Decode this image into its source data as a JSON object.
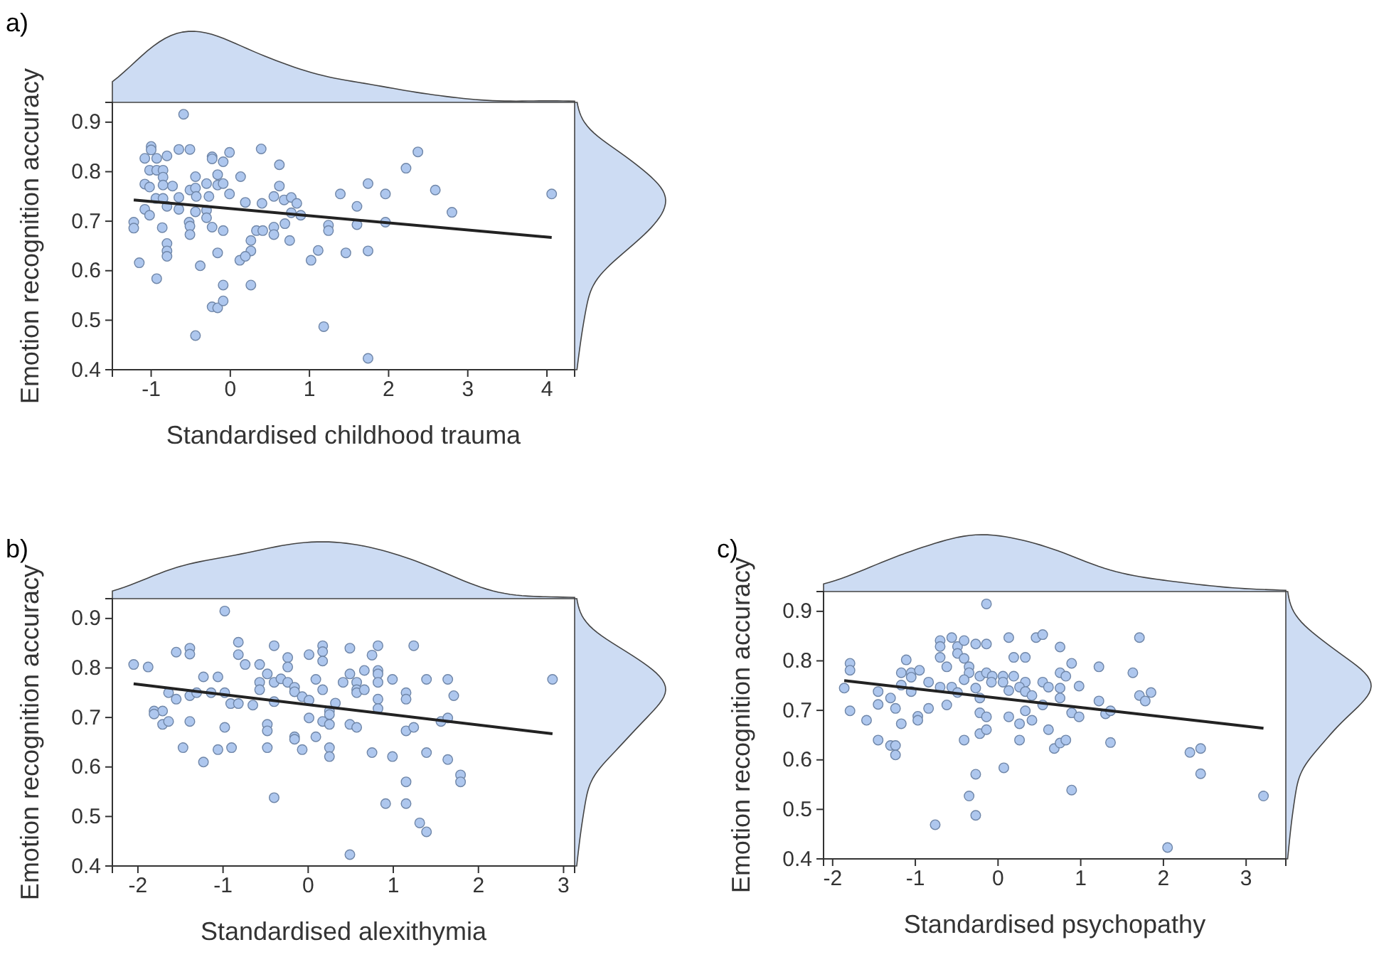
{
  "chart_data": [
    {
      "type": "scatter",
      "title": "a)",
      "xlabel": "Standardised childhood trauma",
      "ylabel": "Emotion recognition accuracy",
      "xlim": [
        -1.49,
        4.35
      ],
      "ylim": [
        0.4,
        0.94
      ],
      "xticks": [
        -1,
        0,
        1,
        2,
        3,
        4
      ],
      "yticks": [
        0.4,
        0.5,
        0.6,
        0.7,
        0.8,
        0.9
      ],
      "grid": false,
      "series": [
        {
          "type": "scatter",
          "marker": "circle",
          "color": "#aec7ee",
          "x": [
            -0.59,
            -1.0,
            -1.0,
            -1.08,
            -0.93,
            -0.65,
            -0.51,
            -0.8,
            -0.23,
            -0.23,
            -0.01,
            -0.09,
            0.39,
            0.62,
            2.37,
            2.22,
            -1.02,
            -0.93,
            -0.85,
            -0.85,
            -0.44,
            -0.16,
            0.13,
            -1.08,
            -1.02,
            -0.85,
            -0.73,
            -0.51,
            -0.44,
            -0.3,
            -0.16,
            -0.09,
            0.62,
            1.74,
            2.59,
            4.06,
            -0.94,
            -0.85,
            -0.65,
            -0.43,
            -0.27,
            -0.01,
            0.4,
            0.55,
            0.68,
            0.77,
            0.84,
            1.39,
            1.6,
            1.96,
            -0.8,
            -0.65,
            -1.08,
            -1.02,
            -0.44,
            -0.3,
            0.19,
            0.77,
            0.89,
            2.8,
            -1.22,
            -1.22,
            -0.52,
            -0.51,
            -0.3,
            -0.23,
            -0.09,
            -0.86,
            -0.51,
            0.33,
            0.41,
            0.55,
            0.55,
            0.69,
            1.24,
            1.24,
            1.6,
            1.96,
            -0.8,
            -0.8,
            -0.8,
            0.75,
            0.26,
            -0.16,
            0.26,
            0.12,
            0.19,
            1.11,
            1.02,
            1.46,
            1.74,
            -1.15,
            -0.38,
            -0.93,
            -0.09,
            0.26,
            -0.23,
            -0.16,
            -0.09,
            1.18,
            -0.44,
            1.74
          ],
          "values": [
            0.916,
            0.851,
            0.844,
            0.827,
            0.827,
            0.845,
            0.845,
            0.832,
            0.83,
            0.826,
            0.839,
            0.82,
            0.846,
            0.814,
            0.84,
            0.807,
            0.803,
            0.803,
            0.803,
            0.789,
            0.79,
            0.794,
            0.79,
            0.775,
            0.769,
            0.773,
            0.771,
            0.763,
            0.767,
            0.776,
            0.773,
            0.776,
            0.771,
            0.776,
            0.763,
            0.755,
            0.746,
            0.746,
            0.748,
            0.75,
            0.75,
            0.755,
            0.736,
            0.75,
            0.743,
            0.748,
            0.736,
            0.755,
            0.73,
            0.755,
            0.73,
            0.724,
            0.724,
            0.712,
            0.719,
            0.722,
            0.738,
            0.717,
            0.712,
            0.718,
            0.698,
            0.686,
            0.698,
            0.69,
            0.707,
            0.688,
            0.681,
            0.687,
            0.673,
            0.681,
            0.681,
            0.688,
            0.673,
            0.695,
            0.692,
            0.681,
            0.693,
            0.698,
            0.655,
            0.64,
            0.629,
            0.661,
            0.661,
            0.636,
            0.64,
            0.621,
            0.629,
            0.641,
            0.621,
            0.636,
            0.64,
            0.616,
            0.61,
            0.584,
            0.571,
            0.571,
            0.527,
            0.525,
            0.539,
            0.487,
            0.469,
            0.423
          ]
        },
        {
          "type": "line",
          "color": "#222222",
          "x": [
            -1.22,
            4.06
          ],
          "values": [
            0.743,
            0.667
          ]
        }
      ]
    },
    {
      "type": "scatter",
      "title": "b)",
      "xlabel": "Standardised alexithymia",
      "ylabel": "Emotion recognition accuracy",
      "xlim": [
        -2.3,
        3.13
      ],
      "ylim": [
        0.4,
        0.94
      ],
      "xticks": [
        -2,
        -1,
        0,
        1,
        2,
        3
      ],
      "yticks": [
        0.4,
        0.5,
        0.6,
        0.7,
        0.8,
        0.9
      ],
      "grid": false,
      "series": [
        {
          "type": "scatter",
          "marker": "circle",
          "color": "#aec7ee",
          "x": [
            -0.98,
            -2.05,
            -1.88,
            -1.55,
            -1.39,
            -1.39,
            -0.82,
            -0.82,
            -0.74,
            -0.4,
            -0.24,
            -0.24,
            0.01,
            0.17,
            0.17,
            0.17,
            0.49,
            0.75,
            0.82,
            1.24,
            -0.57,
            -1.23,
            -1.06,
            -0.48,
            -0.57,
            -0.57,
            -0.4,
            -0.32,
            -0.24,
            -0.16,
            0.09,
            0.41,
            0.49,
            0.57,
            0.57,
            0.57,
            0.66,
            0.66,
            0.82,
            0.82,
            0.82,
            0.99,
            1.39,
            1.64,
            2.87,
            -1.64,
            -1.55,
            -1.39,
            -1.31,
            -1.14,
            -0.98,
            -0.91,
            -0.82,
            -0.65,
            -0.4,
            -0.16,
            -0.07,
            0.01,
            0.17,
            0.32,
            0.82,
            0.82,
            1.15,
            1.15,
            1.71,
            -1.81,
            -1.71,
            -1.81,
            0.25,
            0.25,
            0.17,
            0.25,
            -1.71,
            -1.64,
            -1.39,
            -0.98,
            -0.48,
            -0.48,
            0.01,
            0.49,
            0.57,
            1.15,
            1.24,
            1.56,
            1.64,
            -0.16,
            -0.16,
            -0.07,
            0.09,
            -1.47,
            -1.06,
            -0.9,
            -0.48,
            0.25,
            0.25,
            0.75,
            0.99,
            1.39,
            -1.23,
            1.64,
            1.79,
            1.79,
            1.15,
            -0.4,
            0.91,
            1.15,
            1.31,
            1.39,
            0.49
          ],
          "values": [
            0.915,
            0.807,
            0.802,
            0.832,
            0.84,
            0.828,
            0.852,
            0.827,
            0.807,
            0.845,
            0.821,
            0.802,
            0.827,
            0.845,
            0.833,
            0.814,
            0.84,
            0.826,
            0.845,
            0.845,
            0.807,
            0.782,
            0.782,
            0.788,
            0.771,
            0.756,
            0.771,
            0.778,
            0.771,
            0.761,
            0.777,
            0.771,
            0.788,
            0.771,
            0.756,
            0.75,
            0.756,
            0.795,
            0.795,
            0.788,
            0.771,
            0.777,
            0.777,
            0.777,
            0.777,
            0.75,
            0.737,
            0.744,
            0.75,
            0.75,
            0.75,
            0.728,
            0.728,
            0.725,
            0.732,
            0.752,
            0.742,
            0.735,
            0.756,
            0.729,
            0.737,
            0.718,
            0.75,
            0.737,
            0.744,
            0.713,
            0.713,
            0.707,
            0.713,
            0.706,
            0.692,
            0.686,
            0.686,
            0.692,
            0.692,
            0.68,
            0.686,
            0.673,
            0.699,
            0.686,
            0.68,
            0.673,
            0.68,
            0.692,
            0.699,
            0.661,
            0.656,
            0.635,
            0.661,
            0.639,
            0.635,
            0.639,
            0.639,
            0.639,
            0.621,
            0.629,
            0.621,
            0.629,
            0.61,
            0.615,
            0.584,
            0.57,
            0.57,
            0.538,
            0.526,
            0.526,
            0.487,
            0.469,
            0.423
          ]
        },
        {
          "type": "line",
          "color": "#222222",
          "x": [
            -2.05,
            2.87
          ],
          "values": [
            0.768,
            0.667
          ]
        }
      ]
    },
    {
      "type": "scatter",
      "title": "c)",
      "xlabel": "Standardised psychopathy",
      "ylabel": "Emotion recognition accuracy",
      "xlim": [
        -2.11,
        3.48
      ],
      "ylim": [
        0.4,
        0.94
      ],
      "xticks": [
        -2,
        -1,
        0,
        1,
        2,
        3
      ],
      "yticks": [
        0.4,
        0.5,
        0.6,
        0.7,
        0.8,
        0.9
      ],
      "grid": false,
      "series": [
        {
          "type": "scatter",
          "marker": "circle",
          "color": "#aec7ee",
          "x": [
            -0.14,
            -1.79,
            -1.79,
            -1.86,
            -1.79,
            -1.11,
            -0.7,
            -0.7,
            -0.7,
            -0.56,
            -0.49,
            -0.49,
            -0.41,
            -0.27,
            -0.14,
            0.13,
            0.46,
            0.54,
            0.75,
            1.71,
            -0.62,
            -0.41,
            -0.35,
            0.19,
            0.33,
            1.22,
            0.89,
            -1.17,
            -1.05,
            -0.95,
            -1.05,
            -0.35,
            -0.22,
            -0.14,
            -0.07,
            0.06,
            0.19,
            -0.41,
            -0.08,
            0.06,
            0.13,
            0.33,
            0.54,
            0.75,
            0.82,
            1.63,
            -1.17,
            -1.05,
            -0.84,
            -0.7,
            -0.56,
            -0.49,
            -0.62,
            -0.27,
            -0.22,
            0.26,
            0.33,
            0.41,
            0.61,
            0.75,
            0.75,
            0.98,
            1.22,
            1.71,
            1.78,
            1.85,
            -1.45,
            -1.45,
            -1.3,
            -1.24,
            -0.84,
            -1.59,
            -1.17,
            -0.97,
            -0.97,
            -0.22,
            -0.14,
            0.13,
            0.33,
            0.41,
            0.26,
            0.54,
            0.89,
            0.98,
            1.3,
            1.36,
            -1.45,
            -1.3,
            -1.24,
            -1.24,
            -0.41,
            -0.22,
            -0.14,
            0.26,
            0.61,
            0.68,
            0.75,
            0.82,
            1.36,
            2.32,
            2.45,
            2.45,
            0.07,
            -0.27,
            0.89,
            -0.35,
            -0.27,
            -0.76,
            3.21,
            2.05
          ],
          "values": [
            0.915,
            0.795,
            0.781,
            0.745,
            0.699,
            0.802,
            0.841,
            0.829,
            0.807,
            0.847,
            0.829,
            0.815,
            0.841,
            0.834,
            0.834,
            0.847,
            0.847,
            0.853,
            0.828,
            0.847,
            0.788,
            0.805,
            0.788,
            0.807,
            0.807,
            0.788,
            0.795,
            0.776,
            0.776,
            0.781,
            0.767,
            0.776,
            0.769,
            0.776,
            0.769,
            0.769,
            0.769,
            0.762,
            0.757,
            0.757,
            0.74,
            0.757,
            0.757,
            0.776,
            0.769,
            0.776,
            0.751,
            0.738,
            0.757,
            0.747,
            0.747,
            0.736,
            0.711,
            0.745,
            0.725,
            0.747,
            0.738,
            0.73,
            0.747,
            0.745,
            0.725,
            0.749,
            0.719,
            0.73,
            0.719,
            0.736,
            0.738,
            0.712,
            0.725,
            0.704,
            0.704,
            0.68,
            0.673,
            0.688,
            0.68,
            0.695,
            0.687,
            0.687,
            0.699,
            0.68,
            0.673,
            0.711,
            0.695,
            0.687,
            0.693,
            0.699,
            0.64,
            0.629,
            0.629,
            0.61,
            0.64,
            0.653,
            0.661,
            0.64,
            0.661,
            0.623,
            0.634,
            0.64,
            0.635,
            0.615,
            0.623,
            0.572,
            0.584,
            0.571,
            0.539,
            0.527,
            0.488,
            0.469,
            0.527,
            0.423
          ]
        },
        {
          "type": "line",
          "color": "#222222",
          "x": [
            -1.86,
            3.21
          ],
          "values": [
            0.76,
            0.664
          ]
        }
      ]
    }
  ]
}
